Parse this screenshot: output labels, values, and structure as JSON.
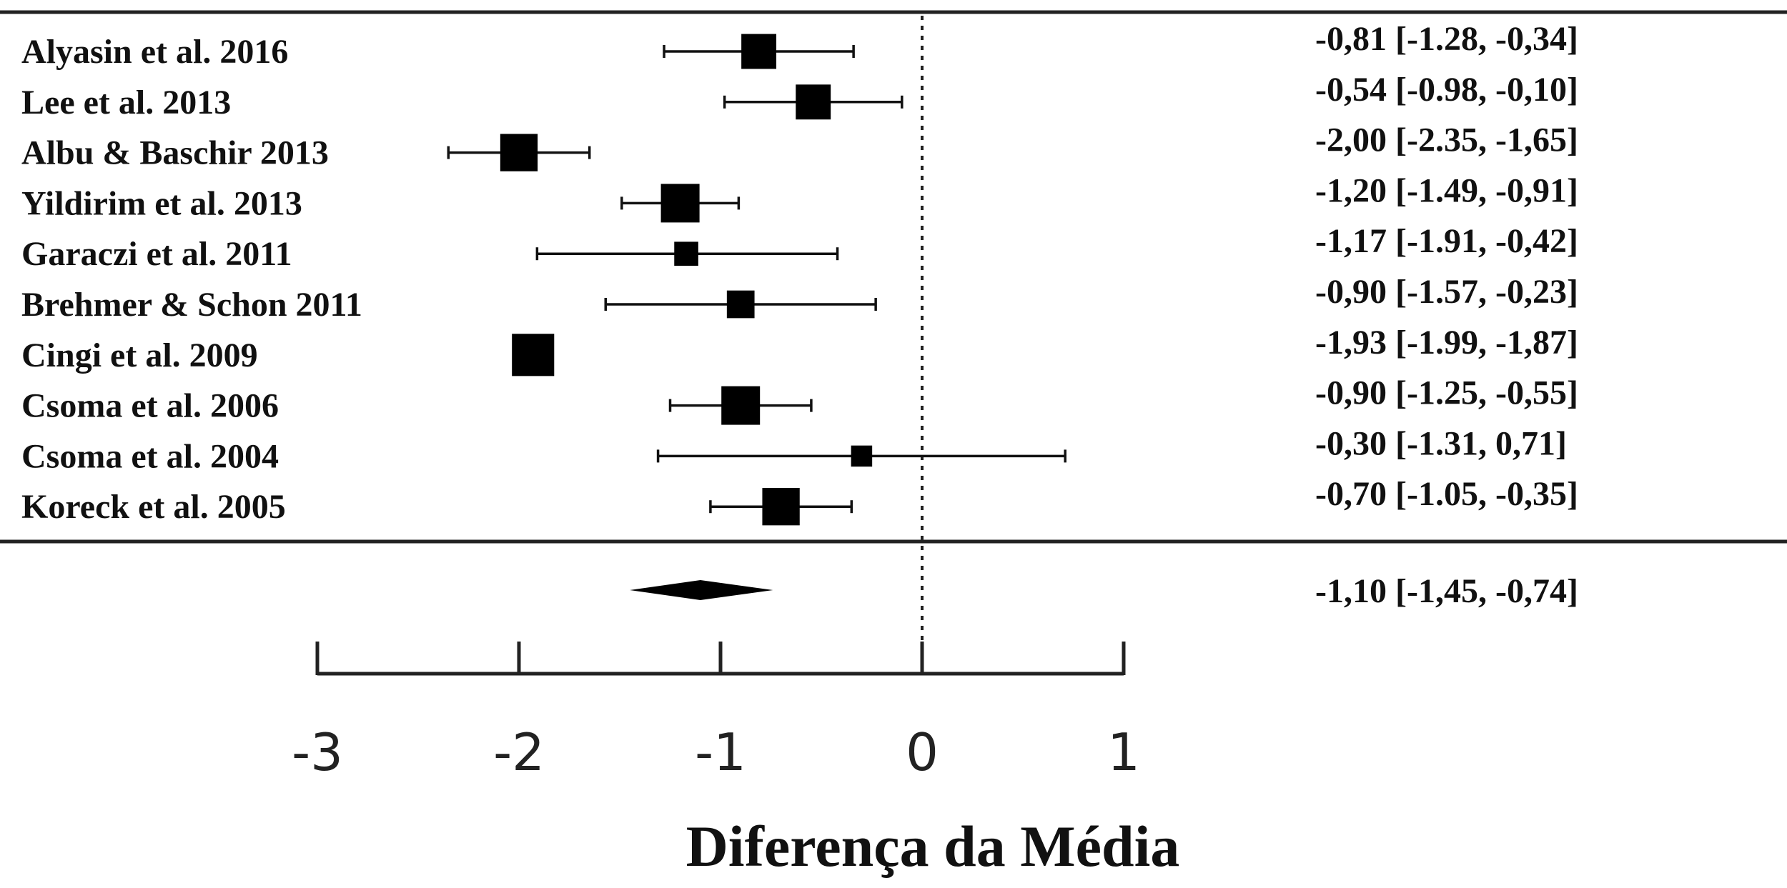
{
  "chart_data": {
    "type": "forest",
    "xlabel": "Diferença da Média",
    "xlim": [
      -3,
      1
    ],
    "ticks": [
      -3,
      -2,
      -1,
      0,
      1
    ],
    "tick_labels": [
      "-3",
      "-2",
      "-1",
      "0",
      "1"
    ],
    "reference_line": 0,
    "studies": [
      {
        "label": "Alyasin et al. 2016",
        "estimate": -0.81,
        "lower": -1.28,
        "upper": -0.34,
        "weight": 0.85,
        "ci_text": "-0,81 [-1.28, -0,34]"
      },
      {
        "label": "Lee et al. 2013",
        "estimate": -0.54,
        "lower": -0.98,
        "upper": -0.1,
        "weight": 0.85,
        "ci_text": "-0,54 [-0.98, -0,10]"
      },
      {
        "label": "Albu  & Baschir 2013",
        "estimate": -2.0,
        "lower": -2.35,
        "upper": -1.65,
        "weight": 0.95,
        "ci_text": "-2,00 [-2.35, -1,65]"
      },
      {
        "label": "Yildirim  et al. 2013",
        "estimate": -1.2,
        "lower": -1.49,
        "upper": -0.91,
        "weight": 1.0,
        "ci_text": "-1,20 [-1.49, -0,91]"
      },
      {
        "label": "Garaczi  et al. 2011",
        "estimate": -1.17,
        "lower": -1.91,
        "upper": -0.42,
        "weight": 0.4,
        "ci_text": "-1,17 [-1.91, -0,42]"
      },
      {
        "label": "Brehmer  & Schon 2011",
        "estimate": -0.9,
        "lower": -1.57,
        "upper": -0.23,
        "weight": 0.55,
        "ci_text": "-0,90 [-1.57, -0,23]"
      },
      {
        "label": "Cingi  et al. 2009",
        "estimate": -1.93,
        "lower": -1.99,
        "upper": -1.87,
        "weight": 1.15,
        "ci_text": "-1,93 [-1.99, -1,87]"
      },
      {
        "label": "Csoma  et al. 2006",
        "estimate": -0.9,
        "lower": -1.25,
        "upper": -0.55,
        "weight": 1.0,
        "ci_text": "-0,90 [-1.25, -0,55]"
      },
      {
        "label": "Csoma  et al. 2004",
        "estimate": -0.3,
        "lower": -1.31,
        "upper": 0.71,
        "weight": 0.28,
        "ci_text": "-0,30 [-1.31,  0,71]"
      },
      {
        "label": "Koreck et al. 2005",
        "estimate": -0.7,
        "lower": -1.05,
        "upper": -0.35,
        "weight": 0.95,
        "ci_text": "-0,70 [-1.05, -0,35]"
      }
    ],
    "summary": {
      "estimate": -1.1,
      "lower": -1.45,
      "upper": -0.74,
      "ci_text": "-1,10 [-1,45, -0,74]"
    }
  }
}
